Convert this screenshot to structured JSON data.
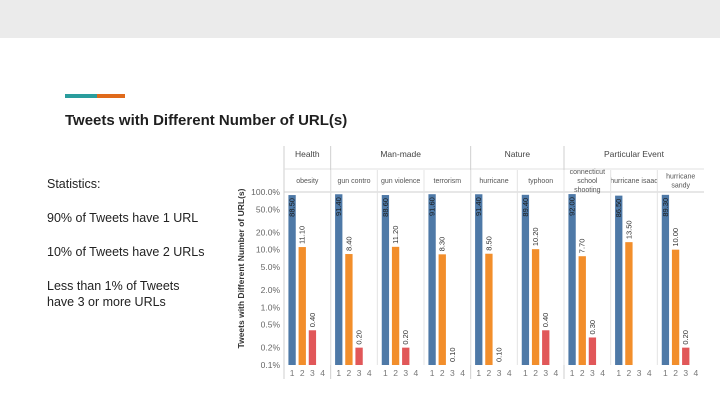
{
  "slide": {
    "title": "Tweets with Different Number of URL(s)",
    "accent_colors": [
      "#2a9d9d",
      "#e06a1b"
    ],
    "stats_heading": "Statistics:",
    "stats": [
      "90% of Tweets have 1 URL",
      "10% of Tweets have 2 URLs",
      "Less than 1% of Tweets have 3 or more URLs"
    ]
  },
  "chart_data": {
    "type": "bar",
    "ylabel": "Tweets with Different Number of URL(s)",
    "yscale": "log",
    "ylim": [
      0.1,
      100
    ],
    "yticks": [
      "100.0%",
      "50.0%",
      "20.0%",
      "10.0%",
      "5.0%",
      "2.0%",
      "1.0%",
      "0.5%",
      "0.2%",
      "0.1%"
    ],
    "ytick_values": [
      100,
      50,
      20,
      10,
      5,
      2,
      1,
      0.5,
      0.2,
      0.1
    ],
    "xticks": [
      "1",
      "2",
      "3",
      "4"
    ],
    "groups": [
      {
        "name": "Health",
        "categories": [
          "obesity"
        ]
      },
      {
        "name": "Man-made",
        "categories": [
          "gun control",
          "gun violence",
          "terrorism"
        ]
      },
      {
        "name": "Nature",
        "categories": [
          "hurricane",
          "typhoon"
        ]
      },
      {
        "name": "Particular Event",
        "categories": [
          "connecticut school shooting",
          "hurricane isaac",
          "hurricane sandy"
        ]
      }
    ],
    "colors": {
      "1": "#4e79a7",
      "2": "#f28e2b",
      "3": "#e15759",
      "4": "#e15759"
    },
    "panels": [
      {
        "category": "obesity",
        "values": [
          88.5,
          11.1,
          0.4,
          null
        ],
        "labels": [
          "88.50",
          "11.10",
          "0.40",
          ""
        ]
      },
      {
        "category": "gun control",
        "values": [
          91.4,
          8.4,
          0.2,
          null
        ],
        "labels": [
          "91.40",
          "8.40",
          "0.20",
          ""
        ]
      },
      {
        "category": "gun violence",
        "values": [
          88.6,
          11.2,
          0.2,
          null
        ],
        "labels": [
          "88.60",
          "11.20",
          "0.20",
          ""
        ]
      },
      {
        "category": "terrorism",
        "values": [
          91.6,
          8.3,
          0.1,
          null
        ],
        "labels": [
          "91.60",
          "8.30",
          "0.10",
          ""
        ]
      },
      {
        "category": "hurricane",
        "values": [
          91.4,
          8.5,
          0.1,
          null
        ],
        "labels": [
          "91.40",
          "8.50",
          "0.10",
          ""
        ]
      },
      {
        "category": "typhoon",
        "values": [
          89.4,
          10.2,
          0.4,
          null
        ],
        "labels": [
          "89.40",
          "10.20",
          "0.40",
          ""
        ]
      },
      {
        "category": "connecticut school shooting",
        "values": [
          92.0,
          7.7,
          0.3,
          null
        ],
        "labels": [
          "92.00",
          "7.70",
          "0.30",
          ""
        ]
      },
      {
        "category": "hurricane isaac",
        "values": [
          86.5,
          13.5,
          null,
          null
        ],
        "labels": [
          "86.50",
          "13.50",
          "",
          ""
        ]
      },
      {
        "category": "hurricane sandy",
        "values": [
          89.3,
          10.0,
          0.2,
          null
        ],
        "labels": [
          "89.30",
          "10.00",
          "0.20",
          ""
        ]
      }
    ],
    "category_display": [
      [
        "obesity"
      ],
      [
        "gun contro"
      ],
      [
        "gun violence"
      ],
      [
        "terrorism"
      ],
      [
        "hurricane"
      ],
      [
        "typhoon"
      ],
      [
        "connecticut",
        "school",
        "shooting"
      ],
      [
        "hurricane isaac"
      ],
      [
        "hurricane",
        "sandy"
      ]
    ],
    "grid": false,
    "legend": "none"
  }
}
